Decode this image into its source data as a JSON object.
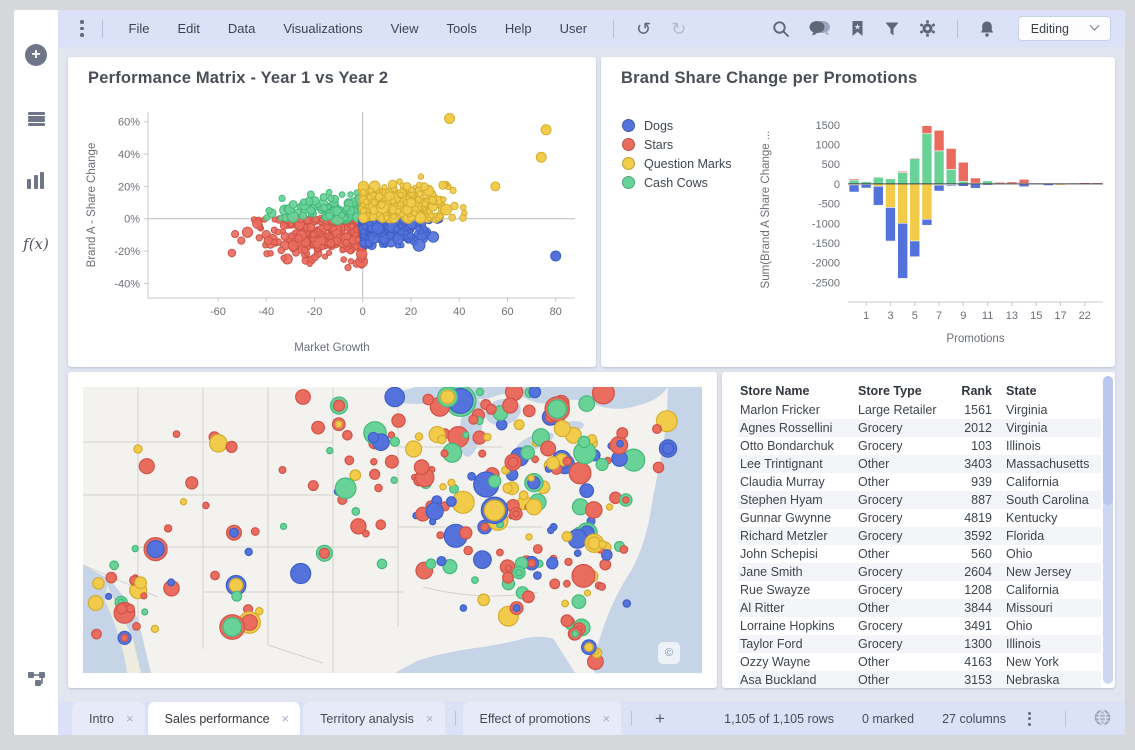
{
  "topbar": {
    "menu_items": [
      "File",
      "Edit",
      "Data",
      "Visualizations",
      "View",
      "Tools",
      "Help",
      "User"
    ],
    "undo_glyph": "↺",
    "redo_glyph": "↻",
    "mode_selector": "Editing",
    "icons_right": [
      "search-icon",
      "comments-icon",
      "bookmarks-icon",
      "filter-icon",
      "settings-icon",
      "notifications-icon"
    ]
  },
  "sidebar": {
    "icons": [
      "add-icon",
      "data-panel-icon",
      "visualizations-icon",
      "functions-icon",
      "data-canvas-icon"
    ],
    "fx_label": "f(x)"
  },
  "colors": {
    "dogs": "#5472DB",
    "stars": "#E96C5F",
    "question_marks": "#F1CB49",
    "cash_cows": "#69D397",
    "dogs_border": "#3f5fc6",
    "stars_border": "#cf5448",
    "question_marks_border": "#d4ad32",
    "cash_cows_border": "#46b87c"
  },
  "panels": {
    "scatter": {
      "title": "Performance Matrix - Year 1 vs Year 2",
      "xlabel": "Market Growth",
      "ylabel": "Brand A - Share Change"
    },
    "bars": {
      "title": "Brand Share Change per Promotions",
      "xlabel": "Promotions",
      "ylabel": "Sum(Brand A Share Change ...",
      "legend": [
        {
          "label": "Dogs",
          "color": "#5472DB"
        },
        {
          "label": "Stars",
          "color": "#E96C5F"
        },
        {
          "label": "Question Marks",
          "color": "#F1CB49"
        },
        {
          "label": "Cash Cows",
          "color": "#69D397"
        }
      ]
    },
    "map": {
      "copyright": "©"
    }
  },
  "tabs": {
    "items": [
      {
        "label": "Intro",
        "active": false
      },
      {
        "label": "Sales performance",
        "active": true
      },
      {
        "label": "Territory analysis",
        "active": false
      },
      {
        "label": "Effect of promotions",
        "active": false
      }
    ],
    "close_glyph": "×",
    "add_label": "+"
  },
  "statusbar": {
    "rows": "1,105 of 1,105 rows",
    "marked": "0 marked",
    "columns": "27 columns"
  },
  "chart_data": [
    {
      "type": "scatter",
      "title": "Performance Matrix - Year 1 vs Year 2",
      "xlabel": "Market Growth",
      "ylabel": "Brand A - Share Change",
      "xlim": [
        -89,
        88
      ],
      "ylim_percent": [
        -49,
        66
      ],
      "xticks": [
        -60,
        -40,
        -20,
        0,
        20,
        40,
        60,
        80
      ],
      "yticks_percent": [
        60,
        40,
        20,
        0,
        -20,
        -40
      ],
      "note": "~970 points colored by quadrant; clusters synthesized from these specs",
      "series": [
        {
          "name": "Stars",
          "color": "stars",
          "count": 330,
          "cx": -13,
          "cy": -10,
          "sx": 15,
          "sy": 7.5,
          "xmin": -72,
          "xmax": -0.4,
          "ymin": -43,
          "ymax": -0.5
        },
        {
          "name": "Cash Cows",
          "color": "cash_cows",
          "count": 135,
          "cx": -9,
          "cy": 6,
          "sx": 13,
          "sy": 4.5,
          "xmin": -68,
          "xmax": -0.3,
          "ymin": 0.5,
          "ymax": 22
        },
        {
          "name": "Dogs",
          "color": "dogs",
          "count": 215,
          "cx": 10,
          "cy": -6.5,
          "sx": 9,
          "sy": 4.5,
          "xmin": 0.3,
          "xmax": 46,
          "ymin": -30,
          "ymax": -0.5
        },
        {
          "name": "Question Marks",
          "color": "question_marks",
          "count": 300,
          "cx": 13,
          "cy": 9,
          "sx": 11,
          "sy": 6,
          "xmin": 0.3,
          "xmax": 84,
          "ymin": 0.5,
          "ymax": 62
        }
      ],
      "outliers": [
        {
          "x": 80,
          "y": -23,
          "color": "dogs",
          "r": 5
        },
        {
          "x": 76,
          "y": 55,
          "color": "question_marks",
          "r": 5
        },
        {
          "x": 74,
          "y": 38,
          "color": "question_marks",
          "r": 5
        },
        {
          "x": 55,
          "y": 20,
          "color": "question_marks",
          "r": 4.5
        },
        {
          "x": 36,
          "y": 62,
          "color": "question_marks",
          "r": 5
        }
      ]
    },
    {
      "type": "bar",
      "stacked": true,
      "title": "Brand Share Change per Promotions",
      "xlabel": "Promotions",
      "ylabel": "Sum(Brand A Share Change ...",
      "ylim": [
        -3000,
        1700
      ],
      "yticks": [
        1500,
        1000,
        500,
        0,
        -500,
        -1000,
        -1500,
        -2000,
        -2500
      ],
      "categories": [
        "0",
        "1",
        "2",
        "3",
        "4",
        "5",
        "6",
        "7",
        "8",
        "9",
        "10",
        "11",
        "12",
        "13",
        "14",
        "15",
        "16",
        "17",
        "19",
        "22",
        "24"
      ],
      "shown_tick_labels": [
        "1",
        "3",
        "5",
        "7",
        "9",
        "11",
        "13",
        "15",
        "17",
        "22"
      ],
      "series": [
        {
          "name": "Cash Cows",
          "color": "cash_cows",
          "values": [
            100,
            60,
            170,
            130,
            290,
            640,
            1280,
            840,
            370,
            70,
            20,
            80,
            10,
            10,
            15,
            10,
            0,
            0,
            0,
            0,
            0
          ]
        },
        {
          "name": "Stars",
          "color": "stars",
          "values": [
            30,
            10,
            15,
            15,
            30,
            20,
            200,
            520,
            530,
            480,
            130,
            10,
            30,
            40,
            100,
            15,
            10,
            5,
            20,
            30,
            25
          ]
        },
        {
          "name": "Question Marks",
          "color": "question_marks",
          "values": [
            -25,
            -15,
            -60,
            -600,
            -1000,
            -1450,
            -900,
            -30,
            -20,
            0,
            0,
            0,
            -10,
            0,
            0,
            -10,
            0,
            -30,
            -10,
            -15,
            -20
          ]
        },
        {
          "name": "Dogs",
          "color": "dogs",
          "values": [
            -180,
            -90,
            -480,
            -850,
            -1400,
            -400,
            -150,
            -150,
            -30,
            -60,
            -110,
            -30,
            0,
            -10,
            -70,
            0,
            -40,
            0,
            0,
            0,
            0
          ]
        }
      ]
    },
    {
      "type": "map",
      "note": "US bubble map, ~280 store bubbles colored like legend; synthesized from cluster specs",
      "clusters": [
        {
          "name": "northeast",
          "count": 95,
          "cx": 460,
          "cy": 60,
          "sx": 55,
          "sy": 35,
          "xmin": 360,
          "xmax": 585,
          "ymin": 5,
          "ymax": 140
        },
        {
          "name": "midwest",
          "count": 55,
          "cx": 330,
          "cy": 90,
          "sx": 60,
          "sy": 50,
          "xmin": 220,
          "xmax": 430,
          "ymin": 10,
          "ymax": 230
        },
        {
          "name": "plains",
          "count": 30,
          "cx": 170,
          "cy": 110,
          "sx": 60,
          "sy": 60,
          "xmin": 55,
          "xmax": 280,
          "ymin": 10,
          "ymax": 240
        },
        {
          "name": "west-coast",
          "count": 24,
          "cx": 52,
          "cy": 212,
          "sx": 22,
          "sy": 26,
          "xmin": 8,
          "xmax": 110,
          "ymin": 160,
          "ymax": 272
        },
        {
          "name": "southeast",
          "count": 45,
          "cx": 470,
          "cy": 170,
          "sx": 45,
          "sy": 33,
          "xmin": 380,
          "xmax": 560,
          "ymin": 120,
          "ymax": 235
        },
        {
          "name": "texas-gulf",
          "count": 18,
          "cx": 420,
          "cy": 190,
          "sx": 45,
          "sy": 25,
          "xmin": 330,
          "xmax": 500,
          "ymin": 140,
          "ymax": 240
        },
        {
          "name": "florida",
          "count": 12,
          "cx": 0,
          "cy": 0,
          "sx": 0,
          "sy": 0,
          "line": [
            485,
            233,
            520,
            280
          ]
        }
      ],
      "color_weights": {
        "stars": 0.42,
        "question_marks": 0.2,
        "dogs": 0.18,
        "cash_cows": 0.2
      }
    },
    {
      "type": "table",
      "columns": [
        "Store Name",
        "Store Type",
        "Rank",
        "State"
      ],
      "rows": [
        [
          "Marlon Fricker",
          "Large Retailer",
          "1561",
          "Virginia"
        ],
        [
          "Agnes Rossellini",
          "Grocery",
          "2012",
          "Virginia"
        ],
        [
          "Otto Bondarchuk",
          "Grocery",
          "103",
          "Illinois"
        ],
        [
          "Lee Trintignant",
          "Other",
          "3403",
          "Massachusetts"
        ],
        [
          "Claudia Murray",
          "Other",
          "939",
          "California"
        ],
        [
          "Stephen Hyam",
          "Grocery",
          "887",
          "South Carolina"
        ],
        [
          "Gunnar Gwynne",
          "Grocery",
          "4819",
          "Kentucky"
        ],
        [
          "Richard Metzler",
          "Grocery",
          "3592",
          "Florida"
        ],
        [
          "John Schepisi",
          "Other",
          "560",
          "Ohio"
        ],
        [
          "Jane Smith",
          "Grocery",
          "2604",
          "New Jersey"
        ],
        [
          "Rue Swayze",
          "Grocery",
          "1208",
          "California"
        ],
        [
          "Al Ritter",
          "Other",
          "3844",
          "Missouri"
        ],
        [
          "Lorraine Hopkins",
          "Grocery",
          "3491",
          "Ohio"
        ],
        [
          "Taylor Ford",
          "Grocery",
          "1300",
          "Illinois"
        ],
        [
          "Ozzy Wayne",
          "Other",
          "4163",
          "New York"
        ],
        [
          "Asa Buckland",
          "Other",
          "3153",
          "Nebraska"
        ]
      ]
    }
  ]
}
